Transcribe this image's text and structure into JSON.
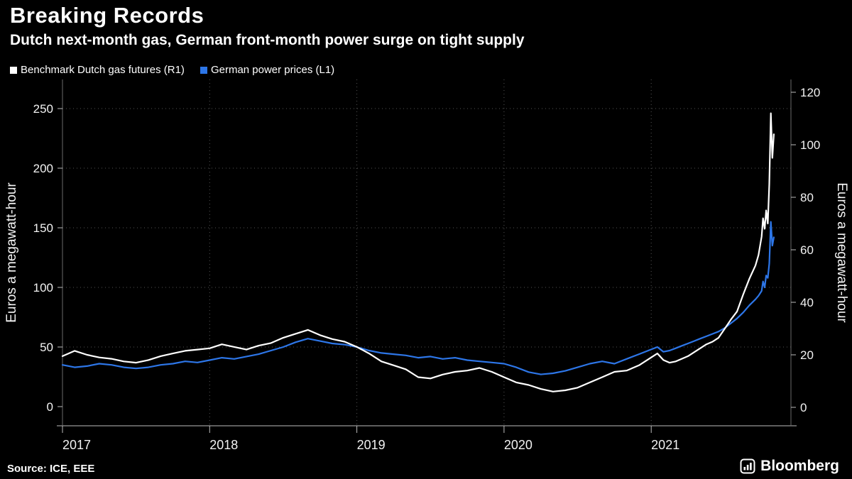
{
  "header": {
    "title": "Breaking Records",
    "subtitle": "Dutch next-month gas, German front-month power surge on tight supply"
  },
  "legend": [
    {
      "label": "Benchmark Dutch gas futures (R1)",
      "color": "#ffffff"
    },
    {
      "label": "German power prices (L1)",
      "color": "#2d76e8"
    }
  ],
  "footer": {
    "source": "Source: ICE, EEE",
    "brand": "Bloomberg"
  },
  "chart_data": {
    "type": "line",
    "background": "#000000",
    "grid": "dotted",
    "x_axis": {
      "tick_years": [
        2017,
        2018,
        2019,
        2020,
        2021
      ],
      "range": [
        2017.0,
        2021.95
      ]
    },
    "left_axis": {
      "title": "Euros a megawatt-hour",
      "ticks": [
        0,
        50,
        100,
        150,
        200,
        250
      ],
      "range": [
        0,
        260
      ]
    },
    "right_axis": {
      "title": "Euros a megawatt-hour",
      "ticks": [
        0,
        20,
        40,
        60,
        80,
        100,
        120
      ],
      "range": [
        0,
        120
      ]
    },
    "x_years": [
      2017,
      2017.083,
      2017.167,
      2017.25,
      2017.333,
      2017.417,
      2017.5,
      2017.583,
      2017.667,
      2017.75,
      2017.833,
      2017.917,
      2018,
      2018.083,
      2018.167,
      2018.25,
      2018.333,
      2018.417,
      2018.5,
      2018.583,
      2018.667,
      2018.75,
      2018.833,
      2018.917,
      2019,
      2019.083,
      2019.167,
      2019.25,
      2019.333,
      2019.417,
      2019.5,
      2019.583,
      2019.667,
      2019.75,
      2019.833,
      2019.917,
      2020,
      2020.083,
      2020.167,
      2020.25,
      2020.333,
      2020.417,
      2020.5,
      2020.583,
      2020.667,
      2020.75,
      2020.833,
      2020.917,
      2021,
      2021.042,
      2021.083,
      2021.125,
      2021.167,
      2021.208,
      2021.25,
      2021.292,
      2021.333,
      2021.375,
      2021.417,
      2021.458,
      2021.5,
      2021.542,
      2021.583,
      2021.625,
      2021.667,
      2021.708,
      2021.729,
      2021.75,
      2021.76,
      2021.771,
      2021.781,
      2021.792,
      2021.802,
      2021.813,
      2021.823,
      2021.833
    ],
    "series": [
      {
        "name": "Benchmark Dutch gas futures (R1)",
        "axis": "right",
        "color": "#ffffff",
        "unit": "EUR/MWh",
        "values": [
          19.5,
          21.5,
          20.0,
          19.0,
          18.5,
          17.5,
          17.0,
          18.0,
          19.5,
          20.5,
          21.5,
          22.0,
          22.5,
          24.0,
          23.0,
          22.0,
          23.5,
          24.5,
          26.5,
          28.0,
          29.5,
          27.5,
          26.0,
          25.0,
          23.0,
          20.5,
          17.5,
          16.0,
          14.5,
          11.5,
          11.0,
          12.5,
          13.5,
          14.0,
          15.0,
          13.5,
          11.5,
          9.5,
          8.5,
          7.0,
          6.0,
          6.5,
          7.5,
          9.5,
          11.5,
          13.5,
          14.0,
          16.0,
          19.0,
          20.5,
          18.0,
          17.0,
          17.5,
          18.5,
          19.5,
          21.0,
          22.5,
          24.0,
          25.0,
          26.5,
          30.0,
          33.5,
          36.5,
          43.0,
          49.0,
          54.0,
          58.0,
          65.0,
          72.0,
          68.0,
          75.0,
          70.0,
          85.0,
          112.0,
          95.0,
          104.0
        ]
      },
      {
        "name": "German power prices (L1)",
        "axis": "left",
        "color": "#2d76e8",
        "unit": "EUR/MWh",
        "values": [
          35,
          33,
          34,
          36,
          35,
          33,
          32,
          33,
          35,
          36,
          38,
          37,
          39,
          41,
          40,
          42,
          44,
          47,
          50,
          54,
          57,
          55,
          53,
          52,
          50,
          47,
          45,
          44,
          43,
          41,
          42,
          40,
          41,
          39,
          38,
          37,
          36,
          33,
          29,
          27,
          28,
          30,
          33,
          36,
          38,
          36,
          40,
          44,
          48,
          50,
          46,
          47,
          49,
          51,
          53,
          55,
          57,
          59,
          61,
          63,
          66,
          70,
          74,
          79,
          85,
          90,
          93,
          97,
          105,
          100,
          110,
          108,
          120,
          155,
          135,
          142
        ]
      }
    ]
  }
}
